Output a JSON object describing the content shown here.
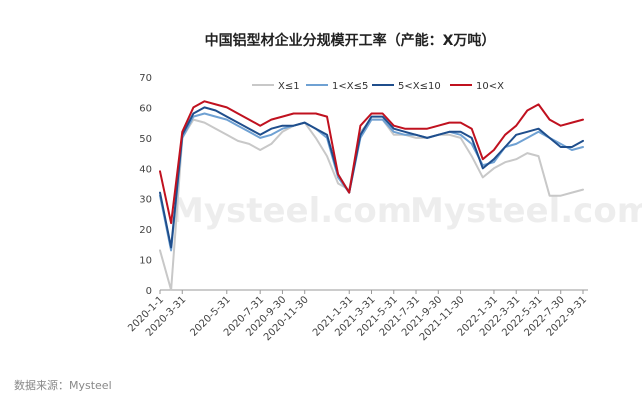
{
  "chart_data": {
    "type": "line",
    "title": "中国铝型材企业分规模开工率（产能：X万吨）",
    "ylim": [
      0,
      70
    ],
    "yticks": [
      0,
      10,
      20,
      30,
      40,
      50,
      60,
      70
    ],
    "x": [
      "2020-1-1",
      "2020-2-15",
      "2020-3-31",
      "2020-4-15",
      "2020-4-30",
      "2020-5-15",
      "2020-5-31",
      "2020-6-15",
      "2020-6-30",
      "2020-7-31",
      "2020-8-31",
      "2020-9-30",
      "2020-10-31",
      "2020-11-30",
      "2020-12-15",
      "2020-12-31",
      "2021-1-20",
      "2021-1-31",
      "2021-2-15",
      "2021-3-31",
      "2021-4-30",
      "2021-5-31",
      "2021-6-30",
      "2021-7-31",
      "2021-8-31",
      "2021-9-30",
      "2021-10-31",
      "2021-11-30",
      "2021-12-31",
      "2022-1-15",
      "2022-1-31",
      "2022-2-28",
      "2022-3-31",
      "2022-4-30",
      "2022-5-31",
      "2022-6-30",
      "2022-7-30",
      "2022-8-31",
      "2022-9-31"
    ],
    "xtick_labels": [
      "2020-1-1",
      "2020-3-31",
      "2020-5-31",
      "2020-7-31",
      "2020-9-30",
      "2020-11-30",
      "2021-1-31",
      "2021-3-31",
      "2021-5-31",
      "2021-7-31",
      "2021-9-30",
      "2021-11-30",
      "2022-1-31",
      "2022-3-31",
      "2022-5-31",
      "2022-7-30",
      "2022-9-31"
    ],
    "xtick_index": [
      0,
      2,
      6,
      9,
      11,
      13,
      17,
      19,
      21,
      23,
      25,
      27,
      30,
      32,
      34,
      36,
      38
    ],
    "legend_position": "top",
    "series": [
      {
        "name": "X≤1",
        "color": "#c8c8c8",
        "values": [
          13,
          0,
          50,
          56,
          55,
          53,
          51,
          49,
          48,
          46,
          48,
          52,
          54,
          55,
          50,
          44,
          35,
          33,
          52,
          56,
          56,
          51,
          51,
          50,
          50,
          51,
          51,
          50,
          44,
          37,
          40,
          42,
          43,
          45,
          44,
          31,
          31,
          32,
          33
        ]
      },
      {
        "name": "1<X≤5",
        "color": "#6fa1d3",
        "values": [
          31,
          13,
          50,
          57,
          58,
          57,
          56,
          54,
          52,
          50,
          51,
          53,
          54,
          55,
          53,
          50,
          37,
          32,
          50,
          56,
          56,
          52,
          51,
          51,
          50,
          51,
          52,
          51,
          48,
          41,
          42,
          47,
          48,
          50,
          52,
          50,
          48,
          46,
          47
        ]
      },
      {
        "name": "5<X≤10",
        "color": "#1f4e8c",
        "values": [
          32,
          14,
          51,
          58,
          60,
          59,
          57,
          55,
          53,
          51,
          53,
          54,
          54,
          55,
          53,
          51,
          38,
          32,
          51,
          57,
          57,
          53,
          52,
          51,
          50,
          51,
          52,
          52,
          50,
          40,
          43,
          47,
          51,
          52,
          53,
          50,
          47,
          47,
          49
        ]
      },
      {
        "name": "10<X",
        "color": "#c0111f",
        "values": [
          39,
          22,
          52,
          60,
          62,
          61,
          60,
          58,
          56,
          54,
          56,
          57,
          58,
          58,
          58,
          57,
          38,
          32,
          54,
          58,
          58,
          54,
          53,
          53,
          53,
          54,
          55,
          55,
          53,
          43,
          46,
          51,
          54,
          59,
          61,
          56,
          54,
          55,
          56
        ]
      }
    ]
  },
  "source_label": "数据来源：Mysteel",
  "watermark": "Mysteel.com"
}
